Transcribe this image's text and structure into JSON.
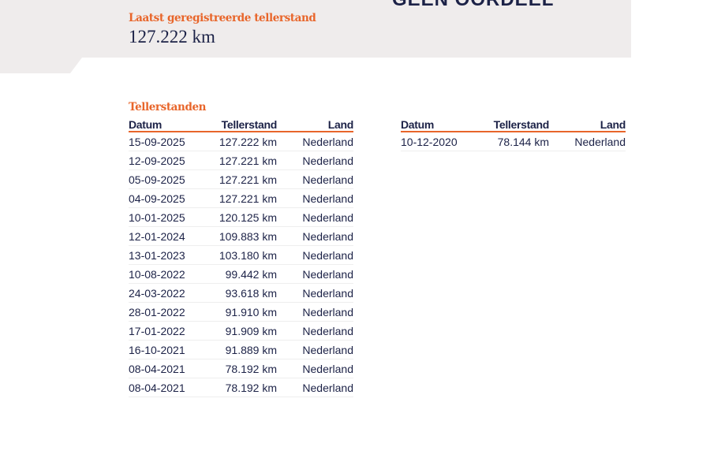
{
  "header": {
    "verdict": "GEEN OORDEEL",
    "last_label": "Laatst geregistreerde tellerstand",
    "last_value": "127.222 km"
  },
  "section_title": "Tellerstanden",
  "columns": [
    "Datum",
    "Tellerstand",
    "Land"
  ],
  "table_left": [
    [
      "15-09-2025",
      "127.222 km",
      "Nederland"
    ],
    [
      "12-09-2025",
      "127.221 km",
      "Nederland"
    ],
    [
      "05-09-2025",
      "127.221 km",
      "Nederland"
    ],
    [
      "04-09-2025",
      "127.221 km",
      "Nederland"
    ],
    [
      "10-01-2025",
      "120.125 km",
      "Nederland"
    ],
    [
      "12-01-2024",
      "109.883 km",
      "Nederland"
    ],
    [
      "13-01-2023",
      "103.180 km",
      "Nederland"
    ],
    [
      "10-08-2022",
      "99.442 km",
      "Nederland"
    ],
    [
      "24-03-2022",
      "93.618 km",
      "Nederland"
    ],
    [
      "28-01-2022",
      "91.910 km",
      "Nederland"
    ],
    [
      "17-01-2022",
      "91.909 km",
      "Nederland"
    ],
    [
      "16-10-2021",
      "91.889 km",
      "Nederland"
    ],
    [
      "08-04-2021",
      "78.192 km",
      "Nederland"
    ],
    [
      "08-04-2021",
      "78.192 km",
      "Nederland"
    ]
  ],
  "table_right": [
    [
      "10-12-2020",
      "78.144 km",
      "Nederland"
    ]
  ],
  "colors": {
    "accent": "#e8652a",
    "text": "#1c2247",
    "band": "#efecec"
  }
}
